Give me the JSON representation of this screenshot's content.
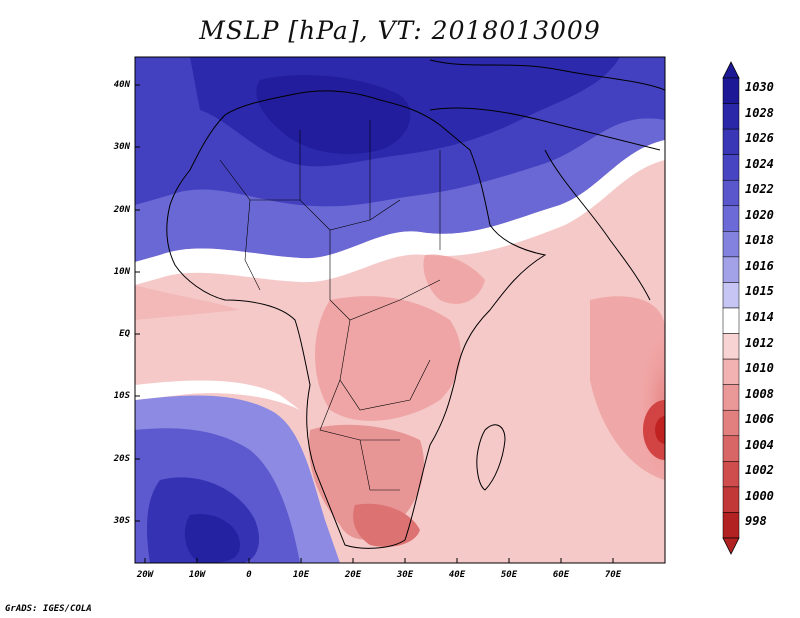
{
  "title": "MSLP [hPa], VT: 2018013009",
  "credit": "GrADS: IGES/COLA",
  "lat_labels": [
    "40N",
    "30N",
    "20N",
    "10N",
    "EQ",
    "10S",
    "20S",
    "30S"
  ],
  "lon_labels": [
    "20W",
    "10W",
    "0",
    "10E",
    "20E",
    "30E",
    "40E",
    "50E",
    "60E",
    "70E"
  ],
  "colorbar": {
    "labels": [
      "1030",
      "1028",
      "1026",
      "1024",
      "1022",
      "1020",
      "1018",
      "1016",
      "1015",
      "1014",
      "1012",
      "1010",
      "1008",
      "1006",
      "1004",
      "1002",
      "1000",
      "998"
    ],
    "colors": [
      "#1c1896",
      "#2a27a8",
      "#3937b6",
      "#4845c2",
      "#5a57cd",
      "#6c6ad6",
      "#8482df",
      "#a3a2e9",
      "#c6c5f3",
      "#ffffff",
      "#f8d3d3",
      "#f2b2b2",
      "#ea9898",
      "#e28080",
      "#d96666",
      "#cf4d4d",
      "#c23838",
      "#b32222"
    ]
  }
}
